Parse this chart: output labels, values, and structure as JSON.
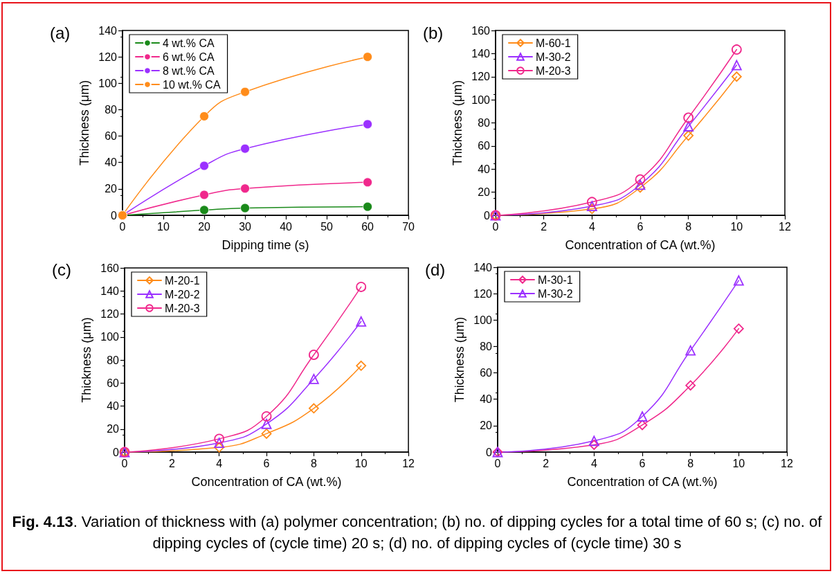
{
  "chart_data": [
    {
      "type": "line",
      "title": "(a)",
      "xlabel": "Dipping time (s)",
      "ylabel": "Thickness (μm)",
      "x": [
        0,
        20,
        30,
        60
      ],
      "xlim": [
        0,
        70
      ],
      "xticks": [
        0,
        10,
        20,
        30,
        40,
        50,
        60,
        70
      ],
      "ylim": [
        0,
        140
      ],
      "yticks": [
        0,
        20,
        40,
        60,
        80,
        100,
        120,
        140
      ],
      "grid": false,
      "legend": "top left",
      "marker": "circle",
      "series": [
        {
          "name": "4 wt.% CA",
          "color": "#1a8a1a",
          "values": [
            0,
            4,
            5.5,
            6.5
          ]
        },
        {
          "name": "6 wt.% CA",
          "color": "#f0288c",
          "values": [
            0,
            15.5,
            20.3,
            25
          ]
        },
        {
          "name": "8 wt.% CA",
          "color": "#9b30ff",
          "values": [
            0,
            37.5,
            50.5,
            69
          ]
        },
        {
          "name": "10 wt.% CA",
          "color": "#ff8c1a",
          "values": [
            0,
            75,
            93.5,
            120
          ]
        }
      ]
    },
    {
      "type": "line",
      "title": "(b)",
      "xlabel": "Concentration of CA (wt.%)",
      "ylabel": "Thickness (μm)",
      "x": [
        0,
        4,
        6,
        8,
        10
      ],
      "xlim": [
        0,
        12
      ],
      "xticks": [
        0,
        2,
        4,
        6,
        8,
        10,
        12
      ],
      "ylim": [
        0,
        160
      ],
      "yticks": [
        0,
        20,
        40,
        60,
        80,
        100,
        120,
        140,
        160
      ],
      "grid": false,
      "legend": "top left",
      "series": [
        {
          "name": "M-60-1",
          "color": "#ff8c1a",
          "marker": "diamond",
          "values": [
            0,
            5.5,
            24,
            69,
            120
          ]
        },
        {
          "name": "M-30-2",
          "color": "#9b30ff",
          "marker": "triangle",
          "values": [
            0,
            8,
            26.5,
            77,
            130
          ]
        },
        {
          "name": "M-20-3",
          "color": "#f0288c",
          "marker": "circle",
          "values": [
            0,
            11.5,
            31,
            84.5,
            143.5
          ]
        }
      ]
    },
    {
      "type": "line",
      "title": "(c)",
      "xlabel": "Concentration of CA (wt.%)",
      "ylabel": "Thickness (μm)",
      "x": [
        0,
        4,
        6,
        8,
        10
      ],
      "xlim": [
        0,
        12
      ],
      "xticks": [
        0,
        2,
        4,
        6,
        8,
        10,
        12
      ],
      "ylim": [
        0,
        160
      ],
      "yticks": [
        0,
        20,
        40,
        60,
        80,
        100,
        120,
        140,
        160
      ],
      "grid": false,
      "legend": "top left",
      "series": [
        {
          "name": "M-20-1",
          "color": "#ff8c1a",
          "marker": "diamond",
          "values": [
            0,
            4,
            16,
            38,
            75
          ]
        },
        {
          "name": "M-20-2",
          "color": "#9b30ff",
          "marker": "triangle",
          "values": [
            0,
            8,
            24.5,
            63.5,
            113.5
          ]
        },
        {
          "name": "M-20-3",
          "color": "#f0288c",
          "marker": "circle",
          "values": [
            0,
            11.5,
            31,
            84.5,
            143.5
          ]
        }
      ]
    },
    {
      "type": "line",
      "title": "(d)",
      "xlabel": "Concentration of CA (wt.%)",
      "ylabel": "Thickness (μm)",
      "x": [
        0,
        4,
        6,
        8,
        10
      ],
      "xlim": [
        0,
        12
      ],
      "xticks": [
        0,
        2,
        4,
        6,
        8,
        10,
        12
      ],
      "ylim": [
        0,
        140
      ],
      "yticks": [
        0,
        20,
        40,
        60,
        80,
        100,
        120,
        140
      ],
      "grid": false,
      "legend": "top left",
      "annotations": [
        "Fig. 4.13",
        ". Variation of thickness with (a) polymer concentration; (b) no. of dipping cycles for a total time of 60 s; (c) no. of dipping cycles of (cycle time) 20 s; (d) no. of dipping cycles of (cycle time) 30 s"
      ],
      "series": [
        {
          "name": "M-30-1",
          "color": "#f0288c",
          "marker": "diamond",
          "values": [
            0,
            5.5,
            20.5,
            50.5,
            93.5
          ]
        },
        {
          "name": "M-30-2",
          "color": "#9b30ff",
          "marker": "triangle",
          "values": [
            0,
            8.5,
            27,
            77,
            130
          ]
        }
      ]
    }
  ]
}
